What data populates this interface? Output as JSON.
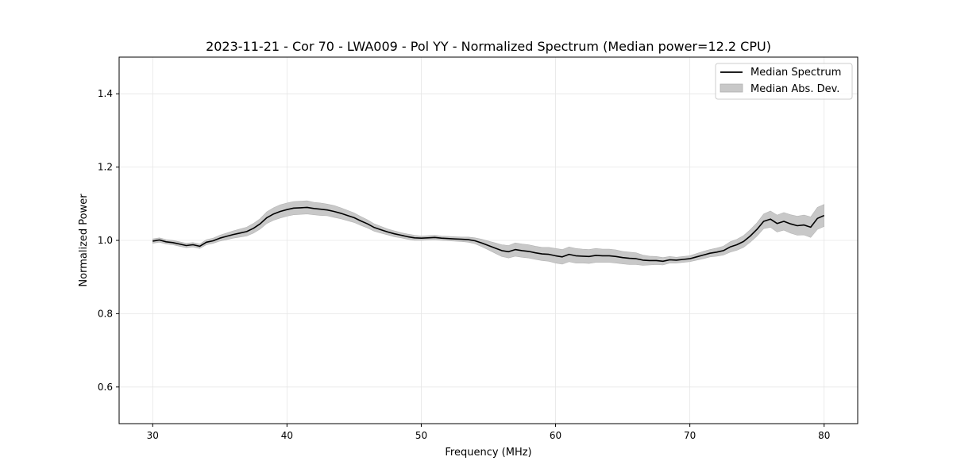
{
  "chart_data": {
    "type": "line",
    "title": "2023-11-21 - Cor 70 - LWA009 - Pol YY - Normalized Spectrum (Median power=12.2 CPU)",
    "xlabel": "Frequency (MHz)",
    "ylabel": "Normalized Power",
    "xlim": [
      27.5,
      82.5
    ],
    "ylim": [
      0.5,
      1.5
    ],
    "xticks": [
      30,
      40,
      50,
      60,
      70,
      80
    ],
    "xtick_labels": [
      "30",
      "40",
      "50",
      "60",
      "70",
      "80"
    ],
    "yticks": [
      0.6,
      0.8,
      1.0,
      1.2,
      1.4
    ],
    "ytick_labels": [
      "0.6",
      "0.8",
      "1.0",
      "1.2",
      "1.4"
    ],
    "grid": true,
    "legend_position": "top-right",
    "legend": [
      {
        "name": "Median Spectrum",
        "color": "#000000",
        "kind": "line"
      },
      {
        "name": "Median Abs. Dev.",
        "color": "#c8c8c8",
        "kind": "band"
      }
    ],
    "series": [
      {
        "name": "Median Spectrum",
        "x": [
          30,
          30.5,
          31,
          31.5,
          32,
          32.5,
          33,
          33.5,
          34,
          34.5,
          35,
          35.5,
          36,
          36.5,
          37,
          37.5,
          38,
          38.5,
          39,
          39.5,
          40,
          40.5,
          41,
          41.5,
          42,
          42.5,
          43,
          43.5,
          44,
          44.5,
          45,
          45.5,
          46,
          46.5,
          47,
          47.5,
          48,
          48.5,
          49,
          49.5,
          50,
          50.5,
          51,
          51.5,
          52,
          52.5,
          53,
          53.5,
          54,
          54.5,
          55,
          55.5,
          56,
          56.5,
          57,
          57.5,
          58,
          58.5,
          59,
          59.5,
          60,
          60.5,
          61,
          61.5,
          62,
          62.5,
          63,
          63.5,
          64,
          64.5,
          65,
          65.5,
          66,
          66.5,
          67,
          67.5,
          68,
          68.5,
          69,
          69.5,
          70,
          70.5,
          71,
          71.5,
          72,
          72.5,
          73,
          73.5,
          74,
          74.5,
          75,
          75.5,
          76,
          76.5,
          77,
          77.5,
          78,
          78.5,
          79,
          79.5,
          80
        ],
        "y": [
          0.998,
          1.001,
          0.996,
          0.994,
          0.99,
          0.986,
          0.988,
          0.984,
          0.995,
          0.999,
          1.006,
          1.011,
          1.016,
          1.02,
          1.024,
          1.033,
          1.045,
          1.062,
          1.072,
          1.079,
          1.084,
          1.088,
          1.089,
          1.09,
          1.087,
          1.085,
          1.083,
          1.079,
          1.074,
          1.068,
          1.062,
          1.053,
          1.045,
          1.035,
          1.029,
          1.023,
          1.018,
          1.014,
          1.01,
          1.007,
          1.006,
          1.007,
          1.008,
          1.006,
          1.005,
          1.004,
          1.003,
          1.002,
          0.999,
          0.993,
          0.986,
          0.979,
          0.972,
          0.969,
          0.975,
          0.972,
          0.97,
          0.966,
          0.963,
          0.962,
          0.958,
          0.955,
          0.962,
          0.958,
          0.957,
          0.956,
          0.959,
          0.958,
          0.958,
          0.956,
          0.953,
          0.951,
          0.95,
          0.946,
          0.945,
          0.945,
          0.943,
          0.947,
          0.946,
          0.948,
          0.95,
          0.955,
          0.96,
          0.965,
          0.968,
          0.972,
          0.982,
          0.988,
          0.997,
          1.012,
          1.03,
          1.052,
          1.058,
          1.046,
          1.052,
          1.045,
          1.04,
          1.042,
          1.036,
          1.06,
          1.068
        ],
        "color": "#000000"
      }
    ],
    "band": {
      "name": "Median Abs. Dev.",
      "halfwidth": [
        0.006,
        0.006,
        0.006,
        0.006,
        0.006,
        0.006,
        0.006,
        0.006,
        0.007,
        0.007,
        0.008,
        0.009,
        0.01,
        0.011,
        0.012,
        0.013,
        0.014,
        0.016,
        0.017,
        0.018,
        0.018,
        0.018,
        0.018,
        0.018,
        0.017,
        0.017,
        0.016,
        0.016,
        0.015,
        0.014,
        0.013,
        0.012,
        0.011,
        0.01,
        0.009,
        0.008,
        0.008,
        0.007,
        0.007,
        0.007,
        0.006,
        0.006,
        0.006,
        0.006,
        0.006,
        0.006,
        0.006,
        0.007,
        0.008,
        0.01,
        0.012,
        0.014,
        0.016,
        0.017,
        0.018,
        0.018,
        0.018,
        0.018,
        0.018,
        0.019,
        0.02,
        0.02,
        0.02,
        0.02,
        0.019,
        0.019,
        0.019,
        0.018,
        0.018,
        0.018,
        0.017,
        0.017,
        0.016,
        0.014,
        0.012,
        0.011,
        0.01,
        0.009,
        0.008,
        0.008,
        0.008,
        0.009,
        0.01,
        0.01,
        0.011,
        0.012,
        0.014,
        0.015,
        0.016,
        0.017,
        0.018,
        0.02,
        0.022,
        0.023,
        0.024,
        0.025,
        0.026,
        0.027,
        0.028,
        0.03,
        0.03
      ],
      "color": "#c8c8c8"
    }
  }
}
